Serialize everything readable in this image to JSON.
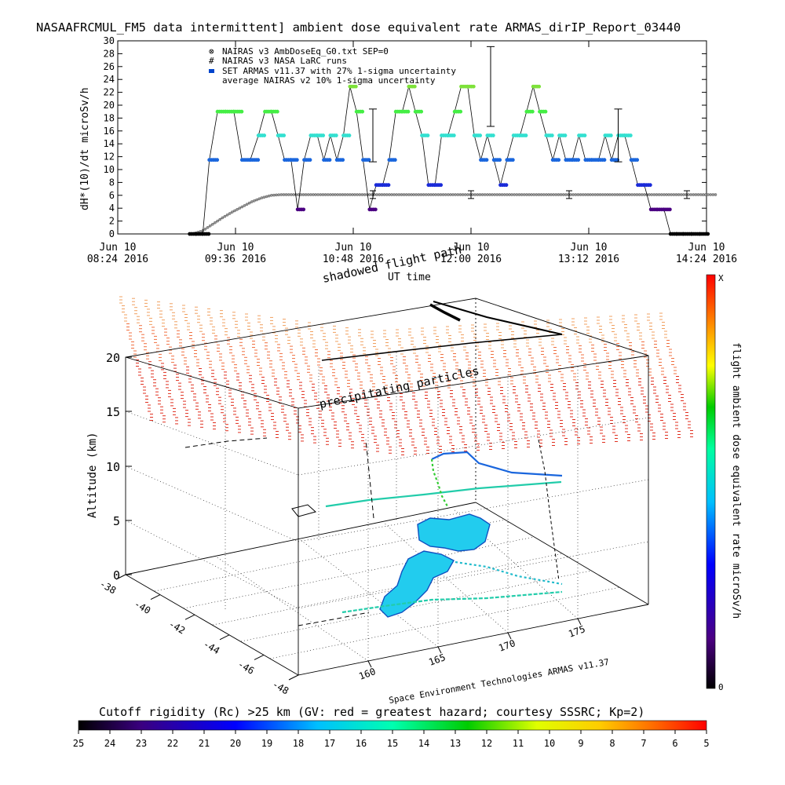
{
  "title": "NASAAFRCMUL_FM5 data intermittent] ambient dose equivalent rate ARMAS_dirIP_Report_03440",
  "chart_data": [
    {
      "type": "scatter",
      "ylabel": "dH*(10)/dt microSv/h",
      "xlabel": "UT time",
      "ylim": [
        0,
        30
      ],
      "yticks": [
        0,
        2,
        4,
        6,
        8,
        10,
        12,
        14,
        16,
        18,
        20,
        22,
        24,
        26,
        28,
        30
      ],
      "xticks": [
        {
          "day": "Jun 10",
          "time": "08:24 2016"
        },
        {
          "day": "Jun 10",
          "time": "09:36 2016"
        },
        {
          "day": "Jun 10",
          "time": "10:48 2016"
        },
        {
          "day": "Jun 10",
          "time": "12:00 2016"
        },
        {
          "day": "Jun 10",
          "time": "13:12 2016"
        },
        {
          "day": "Jun 10",
          "time": "14:24 2016"
        }
      ],
      "xlim": [
        "08:24",
        "14:24"
      ],
      "legend": [
        {
          "name": "NAIRAS v3 AmbDoseEq_G0.txt SEP=0",
          "marker": "⊗"
        },
        {
          "name": "NAIRAS v3 NASA LaRC runs",
          "marker": "#"
        },
        {
          "name": "SET ARMAS v11.37 with 27% 1-sigma uncertainty",
          "marker": "■"
        },
        {
          "name": "average NAIRAS v2 10% 1-sigma uncertainty",
          "marker": ""
        }
      ],
      "series": [
        {
          "name": "NAIRAS v3 AmbDoseEq_G0.txt SEP=0",
          "x_minutes_utc": [
            550,
            556,
            562,
            568,
            574,
            580,
            586,
            592,
            598,
            604,
            610,
            620,
            640,
            660,
            680,
            700,
            720,
            740,
            760,
            780,
            800,
            820,
            840,
            850,
            860,
            870
          ],
          "y": [
            0,
            0.5,
            1.5,
            2.5,
            3.4,
            4.2,
            5,
            5.6,
            6,
            6.1,
            6.1,
            6.1,
            6.1,
            6.1,
            6.1,
            6.1,
            6.1,
            6.1,
            6.1,
            6.1,
            6.1,
            6.1,
            6.1,
            6.1,
            6.1,
            6.1
          ],
          "color": "#777777"
        },
        {
          "name": "average NAIRAS v2 10% 1-sigma uncertainty",
          "errorbars": [
            {
              "x": 660,
              "y": 6.1,
              "err": 0.6
            },
            {
              "x": 720,
              "y": 6.1,
              "err": 0.6
            },
            {
              "x": 780,
              "y": 6.1,
              "err": 0.6
            },
            {
              "x": 852,
              "y": 6.1,
              "err": 0.6
            }
          ]
        },
        {
          "name": "SET ARMAS v11.37 with 27% 1-sigma uncertainty",
          "x_minutes_utc": [
            548,
            552,
            556,
            560,
            565,
            570,
            575,
            580,
            585,
            590,
            594,
            598,
            602,
            606,
            610,
            614,
            618,
            622,
            626,
            630,
            634,
            638,
            642,
            646,
            650,
            654,
            658,
            662,
            666,
            670,
            674,
            678,
            682,
            686,
            690,
            694,
            698,
            702,
            706,
            710,
            714,
            718,
            722,
            726,
            730,
            734,
            738,
            742,
            746,
            750,
            754,
            758,
            762,
            766,
            770,
            774,
            778,
            782,
            786,
            790,
            794,
            798,
            802,
            806,
            810,
            814,
            818,
            822,
            826,
            830,
            834,
            838,
            842,
            846,
            850,
            855,
            860,
            866
          ],
          "y": [
            0,
            0,
            0,
            11.5,
            19,
            19,
            19,
            11.5,
            11.5,
            15.3,
            19,
            19,
            15.3,
            11.5,
            11.5,
            3.8,
            11.5,
            15.3,
            15.3,
            11.5,
            15.3,
            11.5,
            15.3,
            22.9,
            19,
            11.5,
            3.8,
            7.6,
            7.6,
            11.5,
            19,
            19,
            22.9,
            19,
            15.3,
            7.6,
            7.6,
            15.3,
            15.3,
            19,
            22.9,
            22.9,
            15.3,
            11.5,
            15.3,
            11.5,
            7.6,
            11.5,
            15.3,
            15.3,
            19,
            22.9,
            19,
            15.3,
            11.5,
            15.3,
            11.5,
            11.5,
            15.3,
            11.5,
            11.5,
            11.5,
            15.3,
            11.5,
            15.3,
            15.3,
            11.5,
            7.6,
            7.6,
            3.8,
            3.8,
            3.8,
            0,
            0,
            0,
            0,
            0,
            0
          ],
          "color": "#00bb00"
        }
      ],
      "armas_errorbars": [
        {
          "x": 732,
          "y": 22.9,
          "err": 6.2
        },
        {
          "x": 810,
          "y": 15.3,
          "err": 4.1
        },
        {
          "x": 660,
          "y": 15.3,
          "err": 4.1
        }
      ]
    },
    {
      "type": "3d-trajectory",
      "title": "shadowed flight path",
      "zlabel": "Altitude (km)",
      "zticks": [
        "0",
        "5",
        "10",
        "15",
        "20"
      ],
      "lat_ticks": [
        "-38",
        "-40",
        "-42",
        "-44",
        "-46",
        "-48"
      ],
      "lon_ticks": [
        "160",
        "165",
        "170",
        "175"
      ],
      "annotations": [
        "precipitating particles",
        "Space Environment Technologies ARMAS v11.37"
      ],
      "colorbar": {
        "label": "flight ambient dose equivalent rate microSv/h",
        "top_label": "X",
        "bottom_label": "0",
        "colors": [
          "#000000",
          "#4b0082",
          "#0000ff",
          "#00bfff",
          "#00ff7f",
          "#00cc00",
          "#ffff00",
          "#ff8c00",
          "#ff0000"
        ]
      }
    },
    {
      "type": "colorbar",
      "caption": "Cutoff rigidity (Rc) >25 km (GV: red = greatest hazard; courtesy SSSRC; Kp=2)",
      "ticks": [
        "25",
        "24",
        "23",
        "22",
        "21",
        "20",
        "19",
        "18",
        "17",
        "16",
        "15",
        "14",
        "13",
        "12",
        "11",
        "10",
        "9",
        "8",
        "7",
        "6",
        "5"
      ]
    }
  ]
}
